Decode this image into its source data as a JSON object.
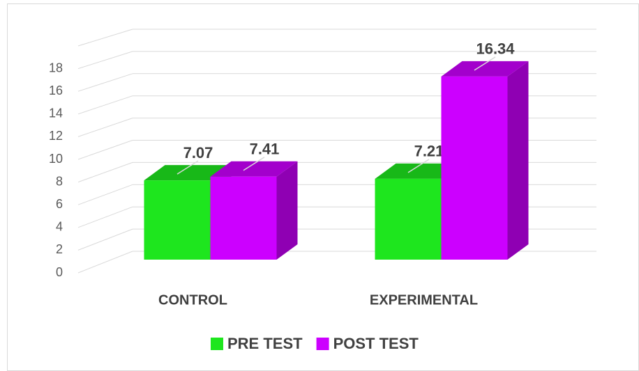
{
  "chart_data": {
    "type": "bar3d",
    "categories": [
      "CONTROL",
      "EXPERIMENTAL"
    ],
    "series": [
      {
        "name": "PRE TEST",
        "color": "#1ee61e",
        "values": [
          7.07,
          7.21
        ]
      },
      {
        "name": "POST TEST",
        "color": "#cc00ff",
        "values": [
          7.41,
          16.34
        ]
      }
    ],
    "ylim": [
      0,
      20
    ],
    "yticks": [
      0,
      2,
      4,
      6,
      8,
      10,
      12,
      14,
      16,
      18
    ],
    "grid": true,
    "legend": "bottom"
  }
}
